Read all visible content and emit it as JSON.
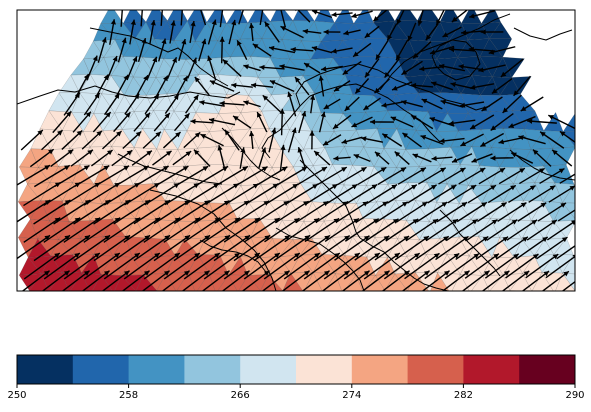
{
  "chart_data": {
    "type": "heatmap",
    "description_kind": "triangulated field over a coastline map with wind vector arrows",
    "title": "",
    "xlabel": "",
    "ylabel": "",
    "colormap": "RdBu_r",
    "colorbar": {
      "min": 250,
      "max": 290,
      "levels": [
        250,
        254,
        258,
        262,
        266,
        270,
        274,
        278,
        282,
        286,
        290
      ],
      "tick_values": [
        250,
        258,
        266,
        274,
        282,
        290
      ],
      "tick_labels": [
        "250",
        "258",
        "266",
        "274",
        "282",
        "290"
      ],
      "colors": [
        "#053061",
        "#2166ac",
        "#4393c3",
        "#92c5de",
        "#d1e5f0",
        "#fbe3d6",
        "#f4a582",
        "#d6604d",
        "#b2182b",
        "#67001f"
      ]
    },
    "grid": false,
    "legend": "none"
  }
}
